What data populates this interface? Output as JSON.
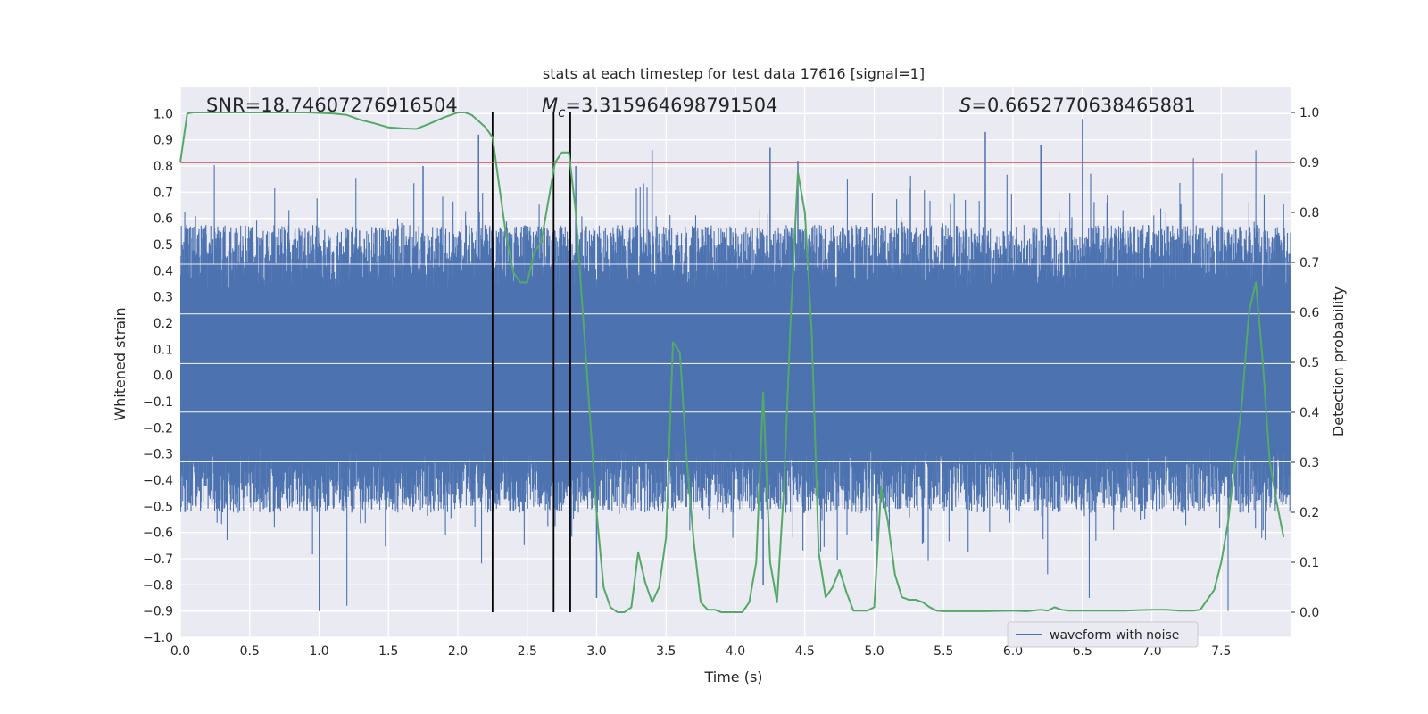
{
  "chart_data": {
    "type": "line",
    "title": "stats at each timestep for test data 17616 [signal=1]",
    "xlabel": "Time (s)",
    "ylabel_left": "Whitened strain",
    "ylabel_right": "Detection probability",
    "xlim": [
      0,
      8
    ],
    "ylim_left": [
      -1.0,
      1.1
    ],
    "ylim_right": [
      -0.05,
      1.05
    ],
    "x_ticks": [
      "0.0",
      "0.5",
      "1.0",
      "1.5",
      "2.0",
      "2.5",
      "3.0",
      "3.5",
      "4.0",
      "4.5",
      "5.0",
      "5.5",
      "6.0",
      "6.5",
      "7.0",
      "7.5"
    ],
    "y_left_ticks": [
      "−1.0",
      "−0.9",
      "−0.8",
      "−0.7",
      "−0.6",
      "−0.5",
      "−0.4",
      "−0.3",
      "−0.2",
      "−0.1",
      "0.0",
      "0.1",
      "0.2",
      "0.3",
      "0.4",
      "0.5",
      "0.6",
      "0.7",
      "0.8",
      "0.9",
      "1.0"
    ],
    "y_right_ticks": [
      "0.0",
      "0.1",
      "0.2",
      "0.3",
      "0.4",
      "0.5",
      "0.6",
      "0.7",
      "0.8",
      "0.9",
      "1.0"
    ],
    "annotations": {
      "snr": "SNR=18.74607276916504",
      "mc_symbol": "M",
      "mc_subscript": "c",
      "mc_value": "=3.315964698791504",
      "s_symbol": "S",
      "s_value": "=0.6652770638465881"
    },
    "legend": {
      "label": "waveform with noise",
      "placement": "bottom-right"
    },
    "threshold": {
      "value": 0.9,
      "axis": "right",
      "color": "#c44e52"
    },
    "vertical_lines": [
      2.25,
      2.69,
      2.81
    ],
    "waveform": {
      "name": "waveform with noise",
      "color": "#4c72b0",
      "t_range": [
        0,
        8
      ],
      "envelope_typical": [
        -0.35,
        0.45
      ],
      "peaks_positive": [
        [
          1.75,
          0.8
        ],
        [
          2.15,
          0.92
        ],
        [
          2.85,
          0.8
        ],
        [
          3.4,
          0.86
        ],
        [
          4.25,
          0.87
        ],
        [
          4.45,
          0.82
        ],
        [
          5.8,
          0.93
        ],
        [
          6.2,
          0.88
        ],
        [
          6.5,
          0.98
        ],
        [
          7.3,
          0.83
        ],
        [
          7.75,
          0.86
        ]
      ],
      "peaks_negative": [
        [
          1.0,
          -0.9
        ],
        [
          1.2,
          -0.88
        ],
        [
          3.0,
          -0.85
        ],
        [
          4.2,
          -0.8
        ],
        [
          6.55,
          -0.85
        ],
        [
          7.55,
          -0.9
        ]
      ]
    },
    "probability": {
      "color": "#55a868",
      "x": [
        0.0,
        0.05,
        0.1,
        0.2,
        0.3,
        0.5,
        0.7,
        0.9,
        1.1,
        1.2,
        1.3,
        1.4,
        1.5,
        1.6,
        1.7,
        1.8,
        1.9,
        2.0,
        2.05,
        2.1,
        2.2,
        2.25,
        2.3,
        2.35,
        2.4,
        2.45,
        2.5,
        2.55,
        2.6,
        2.65,
        2.7,
        2.75,
        2.8,
        2.85,
        2.9,
        2.95,
        3.0,
        3.05,
        3.1,
        3.15,
        3.2,
        3.25,
        3.3,
        3.35,
        3.4,
        3.45,
        3.5,
        3.55,
        3.6,
        3.65,
        3.7,
        3.75,
        3.8,
        3.85,
        3.9,
        3.95,
        4.0,
        4.05,
        4.1,
        4.15,
        4.2,
        4.25,
        4.3,
        4.35,
        4.4,
        4.45,
        4.5,
        4.55,
        4.6,
        4.65,
        4.7,
        4.75,
        4.8,
        4.85,
        4.9,
        4.95,
        5.0,
        5.05,
        5.1,
        5.15,
        5.2,
        5.25,
        5.3,
        5.35,
        5.4,
        5.45,
        5.5,
        5.6,
        5.8,
        6.0,
        6.1,
        6.2,
        6.25,
        6.3,
        6.35,
        6.4,
        6.5,
        6.6,
        6.8,
        7.0,
        7.1,
        7.2,
        7.3,
        7.35,
        7.4,
        7.45,
        7.5,
        7.55,
        7.6,
        7.65,
        7.7,
        7.75,
        7.8,
        7.85,
        7.9,
        7.95
      ],
      "y": [
        0.9,
        0.998,
        1.0,
        1.0,
        1.0,
        1.0,
        1.0,
        1.0,
        0.998,
        0.995,
        0.985,
        0.978,
        0.97,
        0.968,
        0.967,
        0.978,
        0.99,
        1.0,
        1.0,
        0.995,
        0.97,
        0.95,
        0.85,
        0.75,
        0.68,
        0.66,
        0.66,
        0.72,
        0.74,
        0.82,
        0.9,
        0.92,
        0.92,
        0.8,
        0.6,
        0.4,
        0.2,
        0.05,
        0.01,
        0.0,
        0.0,
        0.01,
        0.12,
        0.06,
        0.02,
        0.05,
        0.15,
        0.54,
        0.52,
        0.3,
        0.14,
        0.02,
        0.005,
        0.005,
        0.0,
        0.0,
        0.0,
        0.0,
        0.02,
        0.1,
        0.44,
        0.1,
        0.02,
        0.25,
        0.6,
        0.88,
        0.8,
        0.56,
        0.12,
        0.03,
        0.05,
        0.085,
        0.04,
        0.003,
        0.003,
        0.003,
        0.01,
        0.25,
        0.18,
        0.075,
        0.03,
        0.025,
        0.025,
        0.02,
        0.01,
        0.003,
        0.002,
        0.002,
        0.002,
        0.003,
        0.002,
        0.005,
        0.003,
        0.01,
        0.005,
        0.003,
        0.003,
        0.003,
        0.003,
        0.005,
        0.005,
        0.003,
        0.003,
        0.005,
        0.025,
        0.045,
        0.1,
        0.18,
        0.3,
        0.42,
        0.6,
        0.66,
        0.5,
        0.3,
        0.22,
        0.15
      ]
    }
  }
}
